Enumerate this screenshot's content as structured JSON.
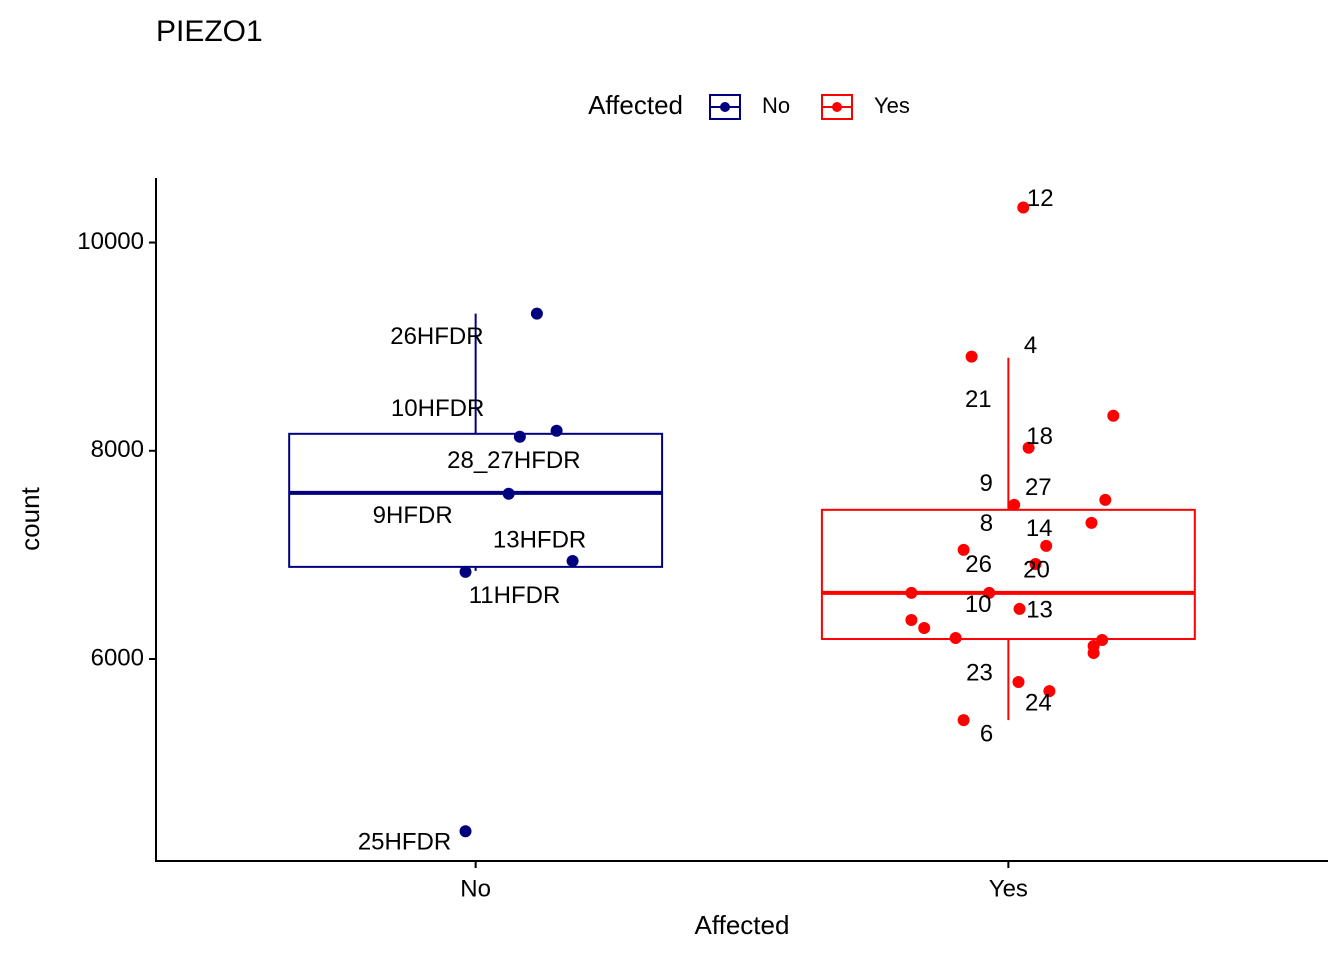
{
  "chart_data": {
    "type": "box",
    "title": "PIEZO1",
    "x_label": "Affected",
    "y_label": "count",
    "legend_title": "Affected",
    "legend_position": "top",
    "categories": [
      "No",
      "Yes"
    ],
    "ylim": [
      4060,
      10620
    ],
    "yticks": [
      6000,
      8000,
      10000
    ],
    "series": [
      {
        "name": "No",
        "color": "#00007f",
        "q1": 6885,
        "median": 7596,
        "q3": 8163,
        "whisker_low": 6846,
        "whisker_high": 9317,
        "points": {
          "x": [
            1.115,
            1.152,
            1.083,
            1.062,
            1.182,
            0.981,
            0.981
          ],
          "y": [
            9317,
            8192,
            8135,
            7587,
            6942,
            6837,
            4346
          ],
          "labels": [
            "26HFDR",
            "10HFDR",
            "28_27HFDR",
            "9HFDR",
            "13HFDR",
            "11HFDR",
            "25HFDR"
          ]
        }
      },
      {
        "name": "Yes",
        "color": "#ff0000",
        "q1": 6192,
        "median": 6635,
        "q3": 7433,
        "whisker_low": 5413,
        "whisker_high": 8894,
        "points": {
          "x": [
            2.028,
            1.931,
            2.197,
            2.038,
            2.182,
            2.011,
            2.156,
            2.071,
            1.916,
            2.051,
            1.964,
            2.021,
            2.019,
            2.077,
            1.916,
            1.818,
            1.818,
            1.842,
            1.901,
            2.176,
            2.16,
            2.16
          ],
          "y": [
            10337,
            8904,
            8337,
            8029,
            7529,
            7481,
            7308,
            7087,
            7048,
            6913,
            6635,
            6481,
            5779,
            5692,
            5413,
            6635,
            6375,
            6298,
            6202,
            6183,
            6125,
            6058
          ],
          "labels": [
            "12",
            "4",
            "21",
            "18",
            "27",
            "9",
            "8",
            "14",
            "26",
            "20",
            "10",
            "13",
            "23",
            "24",
            "6",
            null,
            null,
            null,
            null,
            null,
            null,
            null
          ]
        }
      }
    ]
  }
}
